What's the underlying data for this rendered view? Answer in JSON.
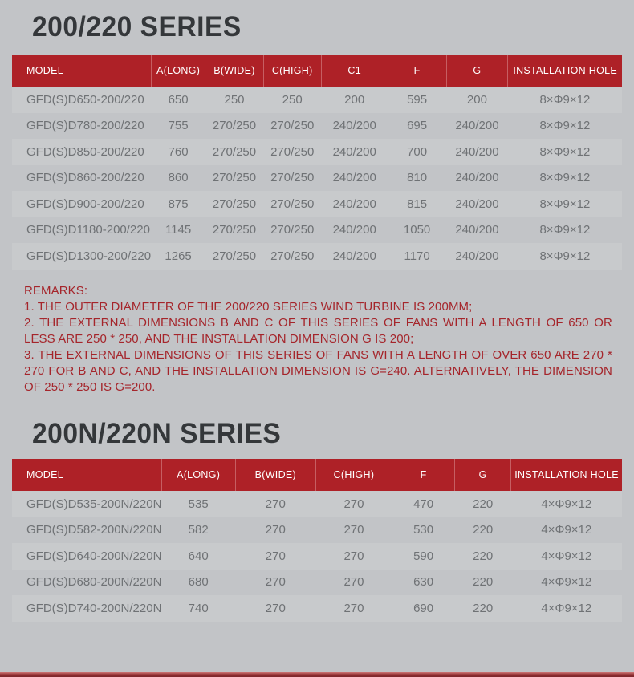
{
  "colors": {
    "background": "#c2c4c7",
    "header_red": "#ae2127",
    "title_color": "#34373a",
    "data_color": "#6f7275",
    "remarks_color": "#a5252b",
    "bottom_bar_color": "#8f2d31"
  },
  "sections": [
    {
      "title": "200/220 SERIES",
      "columns": [
        "MODEL",
        "A(LONG)",
        "B(WIDE)",
        "C(HIGH)",
        "C1",
        "F",
        "G",
        "INSTALLATION HOLE"
      ],
      "rows": [
        [
          "GFD(S)D650-200/220",
          "650",
          "250",
          "250",
          "200",
          "595",
          "200",
          "8×Φ9×12"
        ],
        [
          "GFD(S)D780-200/220",
          "755",
          "270/250",
          "270/250",
          "240/200",
          "695",
          "240/200",
          "8×Φ9×12"
        ],
        [
          "GFD(S)D850-200/220",
          "760",
          "270/250",
          "270/250",
          "240/200",
          "700",
          "240/200",
          "8×Φ9×12"
        ],
        [
          "GFD(S)D860-200/220",
          "860",
          "270/250",
          "270/250",
          "240/200",
          "810",
          "240/200",
          "8×Φ9×12"
        ],
        [
          "GFD(S)D900-200/220",
          "875",
          "270/250",
          "270/250",
          "240/200",
          "815",
          "240/200",
          "8×Φ9×12"
        ],
        [
          "GFD(S)D1180-200/220",
          "1145",
          "270/250",
          "270/250",
          "240/200",
          "1050",
          "240/200",
          "8×Φ9×12"
        ],
        [
          "GFD(S)D1300-200/220",
          "1265",
          "270/250",
          "270/250",
          "240/200",
          "1170",
          "240/200",
          "8×Φ9×12"
        ]
      ]
    },
    {
      "title": "200N/220N SERIES",
      "columns": [
        "MODEL",
        "A(LONG)",
        "B(WIDE)",
        "C(HIGH)",
        "F",
        "G",
        "INSTALLATION HOLE"
      ],
      "rows": [
        [
          "GFD(S)D535-200N/220N",
          "535",
          "270",
          "270",
          "470",
          "220",
          "4×Φ9×12"
        ],
        [
          "GFD(S)D582-200N/220N",
          "582",
          "270",
          "270",
          "530",
          "220",
          "4×Φ9×12"
        ],
        [
          "GFD(S)D640-200N/220N",
          "640",
          "270",
          "270",
          "590",
          "220",
          "4×Φ9×12"
        ],
        [
          "GFD(S)D680-200N/220N",
          "680",
          "270",
          "270",
          "630",
          "220",
          "4×Φ9×12"
        ],
        [
          "GFD(S)D740-200N/220N",
          "740",
          "270",
          "270",
          "690",
          "220",
          "4×Φ9×12"
        ]
      ]
    }
  ],
  "remarks": {
    "heading": "REMARKS:",
    "items": [
      "1. THE OUTER DIAMETER OF THE 200/220 SERIES WIND TURBINE IS 200MM;",
      "2. THE EXTERNAL DIMENSIONS B AND C OF THIS SERIES OF FANS WITH A LENGTH OF 650 OR LESS ARE 250 * 250, AND THE INSTALLATION DIMENSION G IS 200;",
      "3. THE EXTERNAL DIMENSIONS OF THIS SERIES OF FANS WITH A LENGTH OF OVER 650 ARE 270 * 270 FOR B AND C, AND THE INSTALLATION DIMENSION IS G=240. ALTERNATIVELY, THE DIMENSION OF 250 * 250 IS G=200."
    ]
  }
}
